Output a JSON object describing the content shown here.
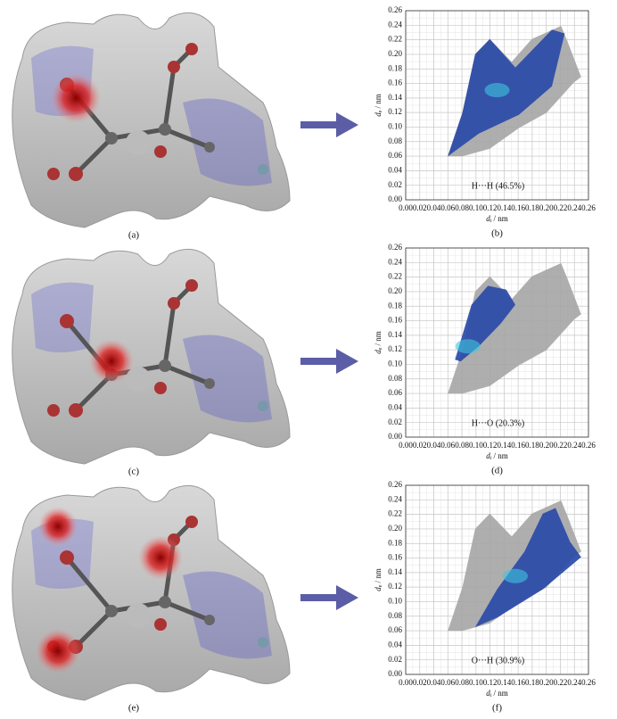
{
  "chart_data": [
    {
      "type": "fingerprint",
      "annotation": "H···H (46.5%)",
      "caption": "(b)",
      "xlabel": {
        "symbol": "d",
        "subscript": "i",
        "unit": "/ nm"
      },
      "ylabel": {
        "symbol": "d",
        "subscript": "e",
        "unit": "/ nm"
      },
      "xlim": [
        0,
        0.26
      ],
      "ylim": [
        0,
        0.26
      ],
      "grid": true,
      "xticks": [
        {
          "value": 0,
          "label": "0.00"
        },
        {
          "value": 0.02,
          "label": "0.02"
        },
        {
          "value": 0.04,
          "label": "0.04"
        },
        {
          "value": 0.06,
          "label": "0.06"
        },
        {
          "value": 0.08,
          "label": "0.08"
        },
        {
          "value": 0.1,
          "label": "0.10"
        },
        {
          "value": 0.12,
          "label": "0.12"
        },
        {
          "value": 0.14,
          "label": "0.14"
        },
        {
          "value": 0.16,
          "label": "0.16"
        },
        {
          "value": 0.18,
          "label": "0.18"
        },
        {
          "value": 0.2,
          "label": "0.20"
        },
        {
          "value": 0.22,
          "label": "0.22"
        },
        {
          "value": 0.24,
          "label": "0.24"
        },
        {
          "value": 0.26,
          "label": "0.26"
        }
      ],
      "yticks": [
        {
          "value": 0,
          "label": "0.00"
        },
        {
          "value": 0.02,
          "label": "0.02"
        },
        {
          "value": 0.04,
          "label": "0.04"
        },
        {
          "value": 0.06,
          "label": "0.06"
        },
        {
          "value": 0.08,
          "label": "0.08"
        },
        {
          "value": 0.1,
          "label": "0.10"
        },
        {
          "value": 0.12,
          "label": "0.12"
        },
        {
          "value": 0.14,
          "label": "0.14"
        },
        {
          "value": 0.16,
          "label": "0.16"
        },
        {
          "value": 0.18,
          "label": "0.18"
        },
        {
          "value": 0.2,
          "label": "0.20"
        },
        {
          "value": 0.22,
          "label": "0.22"
        },
        {
          "value": 0.24,
          "label": "0.24"
        },
        {
          "value": 0.26,
          "label": "0.26"
        }
      ]
    },
    {
      "type": "fingerprint",
      "annotation": "H···O (20.3%)",
      "caption": "(d)",
      "xlabel": {
        "symbol": "d",
        "subscript": "i",
        "unit": "/ nm"
      },
      "ylabel": {
        "symbol": "d",
        "subscript": "e",
        "unit": "/ nm"
      },
      "xlim": [
        0,
        0.26
      ],
      "ylim": [
        0,
        0.26
      ],
      "grid": true,
      "xticks": [
        {
          "value": 0,
          "label": "0.00"
        },
        {
          "value": 0.02,
          "label": "0.02"
        },
        {
          "value": 0.04,
          "label": "0.04"
        },
        {
          "value": 0.06,
          "label": "0.06"
        },
        {
          "value": 0.08,
          "label": "0.08"
        },
        {
          "value": 0.1,
          "label": "0.10"
        },
        {
          "value": 0.12,
          "label": "0.12"
        },
        {
          "value": 0.14,
          "label": "0.14"
        },
        {
          "value": 0.16,
          "label": "0.16"
        },
        {
          "value": 0.18,
          "label": "0.18"
        },
        {
          "value": 0.2,
          "label": "0.20"
        },
        {
          "value": 0.22,
          "label": "0.22"
        },
        {
          "value": 0.24,
          "label": "0.24"
        },
        {
          "value": 0.26,
          "label": "0.26"
        }
      ],
      "yticks": [
        {
          "value": 0,
          "label": "0.00"
        },
        {
          "value": 0.02,
          "label": "0.02"
        },
        {
          "value": 0.04,
          "label": "0.04"
        },
        {
          "value": 0.06,
          "label": "0.06"
        },
        {
          "value": 0.08,
          "label": "0.08"
        },
        {
          "value": 0.1,
          "label": "0.10"
        },
        {
          "value": 0.12,
          "label": "0.12"
        },
        {
          "value": 0.14,
          "label": "0.14"
        },
        {
          "value": 0.16,
          "label": "0.16"
        },
        {
          "value": 0.18,
          "label": "0.18"
        },
        {
          "value": 0.2,
          "label": "0.20"
        },
        {
          "value": 0.22,
          "label": "0.22"
        },
        {
          "value": 0.24,
          "label": "0.24"
        },
        {
          "value": 0.26,
          "label": "0.26"
        }
      ]
    },
    {
      "type": "fingerprint",
      "annotation": "O···H (30.9%)",
      "caption": "(f)",
      "xlabel": {
        "symbol": "d",
        "subscript": "i",
        "unit": "/ nm"
      },
      "ylabel": {
        "symbol": "d",
        "subscript": "e",
        "unit": "/ nm"
      },
      "xlim": [
        0,
        0.26
      ],
      "ylim": [
        0,
        0.26
      ],
      "grid": true,
      "xticks": [
        {
          "value": 0,
          "label": "0.00"
        },
        {
          "value": 0.02,
          "label": "0.02"
        },
        {
          "value": 0.04,
          "label": "0.04"
        },
        {
          "value": 0.06,
          "label": "0.06"
        },
        {
          "value": 0.08,
          "label": "0.08"
        },
        {
          "value": 0.1,
          "label": "0.10"
        },
        {
          "value": 0.12,
          "label": "0.12"
        },
        {
          "value": 0.14,
          "label": "0.14"
        },
        {
          "value": 0.16,
          "label": "0.16"
        },
        {
          "value": 0.18,
          "label": "0.18"
        },
        {
          "value": 0.2,
          "label": "0.20"
        },
        {
          "value": 0.22,
          "label": "0.22"
        },
        {
          "value": 0.24,
          "label": "0.24"
        },
        {
          "value": 0.26,
          "label": "0.26"
        }
      ],
      "yticks": [
        {
          "value": 0,
          "label": "0.00"
        },
        {
          "value": 0.02,
          "label": "0.02"
        },
        {
          "value": 0.04,
          "label": "0.04"
        },
        {
          "value": 0.06,
          "label": "0.06"
        },
        {
          "value": 0.08,
          "label": "0.08"
        },
        {
          "value": 0.1,
          "label": "0.10"
        },
        {
          "value": 0.12,
          "label": "0.12"
        },
        {
          "value": 0.14,
          "label": "0.14"
        },
        {
          "value": 0.16,
          "label": "0.16"
        },
        {
          "value": 0.18,
          "label": "0.18"
        },
        {
          "value": 0.2,
          "label": "0.20"
        },
        {
          "value": 0.22,
          "label": "0.22"
        },
        {
          "value": 0.24,
          "label": "0.24"
        },
        {
          "value": 0.26,
          "label": "0.26"
        }
      ]
    }
  ],
  "images": [
    {
      "caption": "(a)"
    },
    {
      "caption": "(c)"
    },
    {
      "caption": "(e)"
    }
  ]
}
